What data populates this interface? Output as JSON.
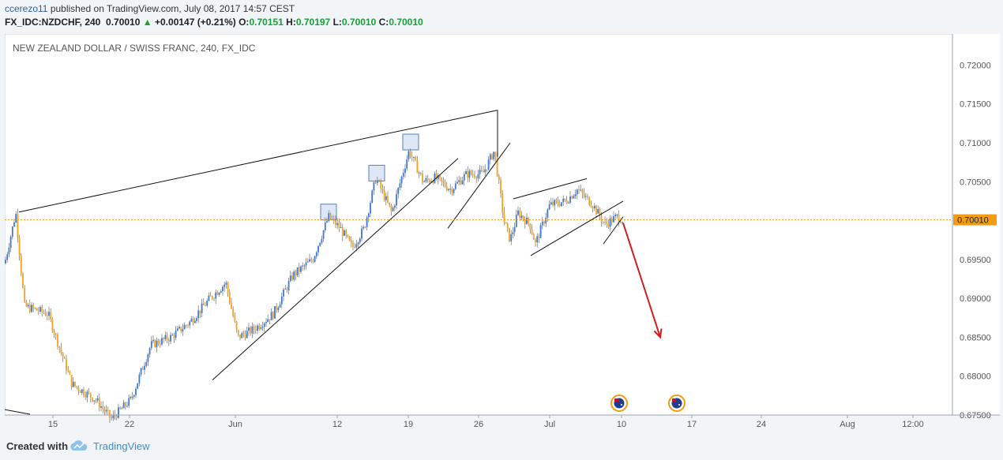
{
  "header": {
    "author": "ccerezo11",
    "published_text": "published on TradingView.com, July 08, 2017 14:57 CEST",
    "symbol": "FX_IDC:NZDCHF, 240",
    "last": "0.70010",
    "change_arrow": "▲",
    "change": "+0.00147 (+0.21%)",
    "open_label": "O:",
    "open": "0.70151",
    "high_label": "H:",
    "high": "0.70197",
    "low_label": "L:",
    "low": "0.70010",
    "close_label": "C:",
    "close": "0.70010"
  },
  "chart_data": {
    "type": "candlestick",
    "title": "NEW ZEALAND DOLLAR / SWISS FRANC, 240, FX_IDC",
    "ylim": [
      0.675,
      0.724
    ],
    "y_ticks": [
      "0.72000",
      "0.71500",
      "0.71000",
      "0.70500",
      "0.70000",
      "0.69500",
      "0.69000",
      "0.68500",
      "0.68000",
      "0.67500"
    ],
    "y_tick_values": [
      0.72,
      0.715,
      0.71,
      0.705,
      0.7,
      0.695,
      0.69,
      0.685,
      0.68,
      0.675
    ],
    "x_ticks": [
      "15",
      "22",
      "Jun",
      "12",
      "19",
      "26",
      "Jul",
      "10",
      "17",
      "24",
      "Aug",
      "12:00"
    ],
    "current_price": 0.7001,
    "current_price_label": "0.70010",
    "colors": {
      "up": "#3b78d8",
      "down": "#f7a21b",
      "price_line": "#f39c12",
      "trend_line": "#111111",
      "arrow": "#cc1f1f"
    },
    "path_points": [
      [
        0,
        0.6945
      ],
      [
        14,
        0.701
      ],
      [
        25,
        0.689
      ],
      [
        55,
        0.688
      ],
      [
        85,
        0.679
      ],
      [
        115,
        0.677
      ],
      [
        135,
        0.6745
      ],
      [
        160,
        0.677
      ],
      [
        185,
        0.684
      ],
      [
        210,
        0.685
      ],
      [
        235,
        0.687
      ],
      [
        260,
        0.69
      ],
      [
        280,
        0.692
      ],
      [
        295,
        0.685
      ],
      [
        315,
        0.686
      ],
      [
        340,
        0.688
      ],
      [
        365,
        0.693
      ],
      [
        390,
        0.695
      ],
      [
        410,
        0.7005
      ],
      [
        425,
        0.699
      ],
      [
        440,
        0.6965
      ],
      [
        455,
        0.699
      ],
      [
        470,
        0.7055
      ],
      [
        490,
        0.701
      ],
      [
        512,
        0.709
      ],
      [
        530,
        0.705
      ],
      [
        545,
        0.7055
      ],
      [
        565,
        0.704
      ],
      [
        585,
        0.706
      ],
      [
        605,
        0.706
      ],
      [
        620,
        0.709
      ],
      [
        632,
        0.7
      ],
      [
        640,
        0.6975
      ],
      [
        650,
        0.701
      ],
      [
        665,
        0.6995
      ],
      [
        672,
        0.697
      ],
      [
        690,
        0.702
      ],
      [
        710,
        0.7025
      ],
      [
        725,
        0.704
      ],
      [
        745,
        0.702
      ],
      [
        760,
        0.6995
      ],
      [
        775,
        0.7005
      ],
      [
        783,
        0.7001
      ]
    ],
    "annotation_boxes": [
      {
        "x": 410,
        "price": 0.701
      },
      {
        "x": 471,
        "price": 0.706
      },
      {
        "x": 514,
        "price": 0.71
      }
    ],
    "trend_lines": [
      {
        "x1": 18,
        "p1": 0.7011,
        "x2": 624,
        "p2": 0.7142
      },
      {
        "x1": 624,
        "p1": 0.7142,
        "x2": 624,
        "p2": 0.7082
      },
      {
        "x1": 263,
        "p1": 0.6795,
        "x2": 574,
        "p2": 0.708
      },
      {
        "x1": 561,
        "p1": 0.699,
        "x2": 640,
        "p2": 0.71
      },
      {
        "x1": 644,
        "p1": 0.7028,
        "x2": 737,
        "p2": 0.7054
      },
      {
        "x1": 666,
        "p1": 0.6955,
        "x2": 783,
        "p2": 0.7025
      },
      {
        "x1": 758,
        "p1": 0.697,
        "x2": 783,
        "p2": 0.7005
      },
      {
        "x1": 0,
        "p1": 0.6757,
        "x2": 32,
        "p2": 0.6751
      }
    ],
    "projection_arrow": {
      "x1": 783,
      "p1": 0.6997,
      "x2": 830,
      "p2": 0.685
    },
    "event_markers": [
      {
        "x": 778
      },
      {
        "x": 851
      }
    ]
  },
  "footer": {
    "created_with": "Created with",
    "brand": "TradingView"
  }
}
